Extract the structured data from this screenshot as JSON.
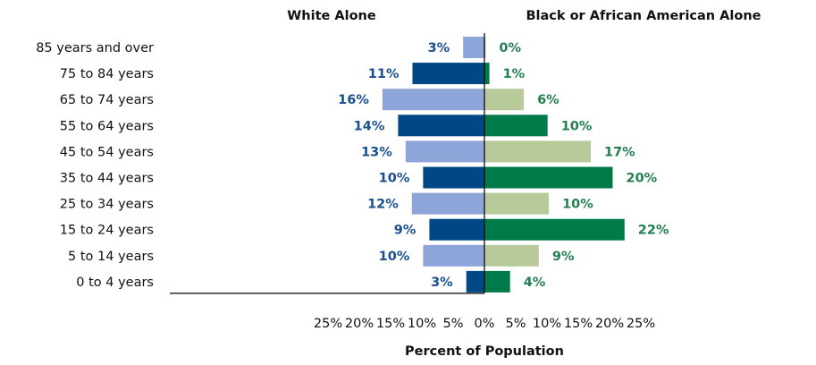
{
  "chart_data": {
    "type": "bar",
    "orientation": "horizontal-diverging",
    "categories": [
      "85 years and over",
      "75 to 84 years",
      "65 to 74 years",
      "55 to 64 years",
      "45 to 54 years",
      "35 to 44 years",
      "25 to 34 years",
      "15 to 24 years",
      "5 to 14 years",
      "0 to 4 years"
    ],
    "series": [
      {
        "name": "White Alone",
        "side": "left",
        "values": [
          3.4,
          11.5,
          16.3,
          13.8,
          12.6,
          9.8,
          11.6,
          8.8,
          9.8,
          2.9
        ],
        "labels": [
          "3%",
          "11%",
          "16%",
          "14%",
          "13%",
          "10%",
          "12%",
          "9%",
          "10%",
          "3%"
        ],
        "colors": [
          "#8ea5d9",
          "#004785",
          "#8ea5d9",
          "#004785",
          "#8ea5d9",
          "#004785",
          "#8ea5d9",
          "#004785",
          "#8ea5d9",
          "#004785"
        ],
        "label_color": "#1a4f8f"
      },
      {
        "name": "Black or African American Alone",
        "side": "right",
        "values": [
          0.2,
          0.8,
          6.3,
          10.1,
          17.0,
          20.5,
          10.3,
          22.4,
          8.7,
          4.1
        ],
        "labels": [
          "0%",
          "1%",
          "6%",
          "10%",
          "17%",
          "20%",
          "10%",
          "22%",
          "9%",
          "4%"
        ],
        "colors": [
          "#b8ca9a",
          "#007a48",
          "#b8ca9a",
          "#007a48",
          "#b8ca9a",
          "#007a48",
          "#b8ca9a",
          "#007a48",
          "#b8ca9a",
          "#007a48"
        ],
        "label_color": "#228050"
      }
    ],
    "x_ticks": [
      "25%",
      "20%",
      "15%",
      "10%",
      "5%",
      "0%",
      "5%",
      "10%",
      "15%",
      "20%",
      "25%"
    ],
    "xlim": [
      -25,
      25
    ],
    "xlabel": "Percent of Population",
    "grid": false
  }
}
